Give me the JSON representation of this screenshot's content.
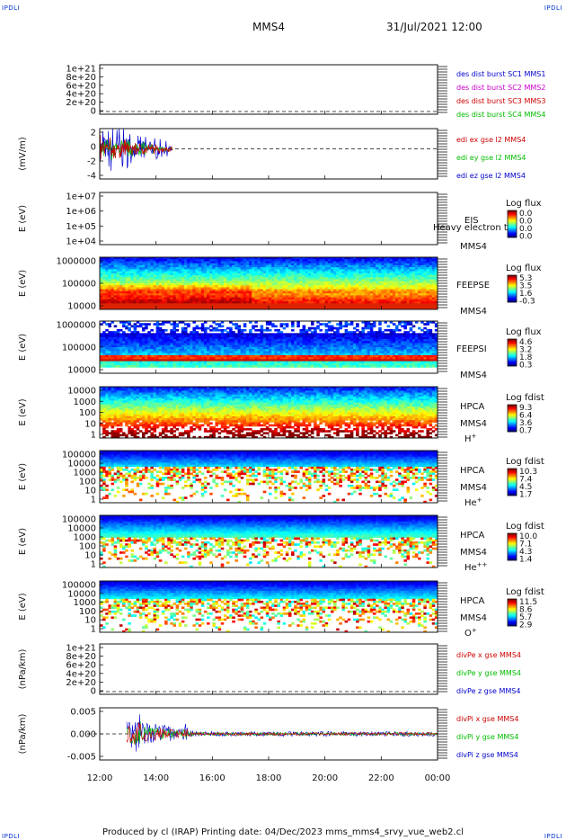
{
  "corner_label": "IPDLI",
  "header": {
    "spacecraft": "MMS4",
    "datetime": "31/Jul/2021 12:00"
  },
  "footer": "Produced by cl (IRAP)   Printing date: 04/Dec/2023   mms_mms4_srvy_vue_web2.cl",
  "chart_data": {
    "type": "multi-panel time series / spectrogram",
    "x": {
      "tick_labels": [
        "12:00",
        "14:00",
        "16:00",
        "18:00",
        "20:00",
        "22:00",
        "00:00"
      ],
      "start": "12:00",
      "end": "00:00",
      "unit": "hours"
    },
    "panels": [
      {
        "kind": "line",
        "ylabel": "",
        "yticks": [
          "1e+21",
          "8e+20",
          "6e+20",
          "4e+20",
          "2e+20",
          "0"
        ],
        "legend": [
          {
            "text": "des dist burst SC1 MMS1",
            "color": "#0000cc"
          },
          {
            "text": "des dist burst SC2 MMS2",
            "color": "#cc00cc"
          },
          {
            "text": "des dist burst SC3 MMS3",
            "color": "#cc0000"
          },
          {
            "text": "des dist burst SC4 MMS4",
            "color": "#00bb00"
          }
        ]
      },
      {
        "kind": "line",
        "ylabel": "(mV/m)",
        "yticks": [
          "2",
          "0",
          "-2",
          "-4"
        ],
        "ylim": [
          -4.5,
          3
        ],
        "activity_window_hours": [
          12.0,
          14.6
        ],
        "legend": [
          {
            "text": "edi ex gse l2 MMS4",
            "color": "#cc0000"
          },
          {
            "text": "edi ey gse l2 MMS4",
            "color": "#00bb00"
          },
          {
            "text": "edi ez gse l2 MMS4",
            "color": "#0000cc"
          }
        ]
      },
      {
        "kind": "spectrogram-empty",
        "ylabel": "E (eV)",
        "yticks": [
          "1e+07",
          "1e+06",
          "1e+05",
          "1e+04"
        ],
        "labels": [
          "EIS",
          "MMS4"
        ],
        "overlay_text": "Heavy electron to",
        "colorbar_title": "Log flux",
        "colorbar_ticks": [
          "0.0",
          "0.0",
          "0.0",
          "0.0"
        ]
      },
      {
        "kind": "spectrogram",
        "ylabel": "E (eV)",
        "yticks": [
          "1000000",
          "100000",
          "10000"
        ],
        "labels": [
          "FEEPSE",
          "MMS4"
        ],
        "colorbar_title": "Log flux",
        "colorbar_ticks": [
          "5.3",
          "3.5",
          "1.6",
          "-0.3"
        ]
      },
      {
        "kind": "spectrogram",
        "ylabel": "E (eV)",
        "yticks": [
          "1000000",
          "100000",
          "10000"
        ],
        "labels": [
          "FEEPSI",
          "MMS4"
        ],
        "colorbar_title": "Log flux",
        "colorbar_ticks": [
          "4.6",
          "3.2",
          "1.8",
          "0.3"
        ]
      },
      {
        "kind": "spectrogram",
        "ylabel": "E (eV)",
        "yticks": [
          "10000",
          "1000",
          "100",
          "10",
          "1"
        ],
        "labels": [
          "HPCA",
          "MMS4",
          "H+"
        ],
        "colorbar_title": "Log fdist",
        "colorbar_ticks": [
          "9.3",
          "6.4",
          "3.6",
          "0.7"
        ]
      },
      {
        "kind": "spectrogram",
        "ylabel": "E (eV)",
        "yticks": [
          "100000",
          "10000",
          "1000",
          "100",
          "10",
          "1"
        ],
        "labels": [
          "HPCA",
          "MMS4",
          "He+"
        ],
        "colorbar_title": "Log fdist",
        "colorbar_ticks": [
          "10.3",
          "7.4",
          "4.5",
          "1.7"
        ]
      },
      {
        "kind": "spectrogram",
        "ylabel": "E (eV)",
        "yticks": [
          "100000",
          "10000",
          "1000",
          "100",
          "10",
          "1"
        ],
        "labels": [
          "HPCA",
          "MMS4",
          "He++"
        ],
        "colorbar_title": "Log fdist",
        "colorbar_ticks": [
          "10.0",
          "7.1",
          "4.3",
          "1.4"
        ]
      },
      {
        "kind": "spectrogram",
        "ylabel": "E (eV)",
        "yticks": [
          "100000",
          "10000",
          "1000",
          "100",
          "10",
          "1"
        ],
        "labels": [
          "HPCA",
          "MMS4",
          "O+"
        ],
        "colorbar_title": "Log fdist",
        "colorbar_ticks": [
          "11.5",
          "8.6",
          "5.7",
          "2.9"
        ]
      },
      {
        "kind": "line",
        "ylabel": "(nPa/km)",
        "yticks": [
          "1e+21",
          "8e+20",
          "6e+20",
          "4e+20",
          "2e+20",
          "0"
        ],
        "legend": [
          {
            "text": "divPe x gse MMS4",
            "color": "#cc0000"
          },
          {
            "text": "divPe y gse MMS4",
            "color": "#00bb00"
          },
          {
            "text": "divPe z gse MMS4",
            "color": "#0000cc"
          }
        ]
      },
      {
        "kind": "line",
        "ylabel": "(nPa/km)",
        "yticks": [
          "0.005",
          "0.000",
          "-0.005"
        ],
        "ylim": [
          -0.0085,
          0.0085
        ],
        "legend": [
          {
            "text": "divPi x gse MMS4",
            "color": "#cc0000"
          },
          {
            "text": "divPi y gse MMS4",
            "color": "#00bb00"
          },
          {
            "text": "divPi z gse MMS4",
            "color": "#0000cc"
          }
        ]
      }
    ]
  }
}
